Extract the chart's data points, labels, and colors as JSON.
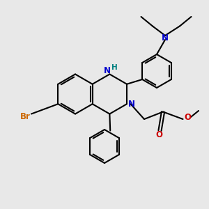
{
  "bg_color": "#e8e8e8",
  "bond_color": "#000000",
  "N_color": "#0000cc",
  "O_color": "#cc0000",
  "Br_color": "#cc6600",
  "H_color": "#008080",
  "line_width": 1.5,
  "font_size": 8.5,
  "fig_size": [
    3.0,
    3.0
  ],
  "dpi": 100,
  "xlim": [
    0,
    10
  ],
  "ylim": [
    0,
    10
  ]
}
